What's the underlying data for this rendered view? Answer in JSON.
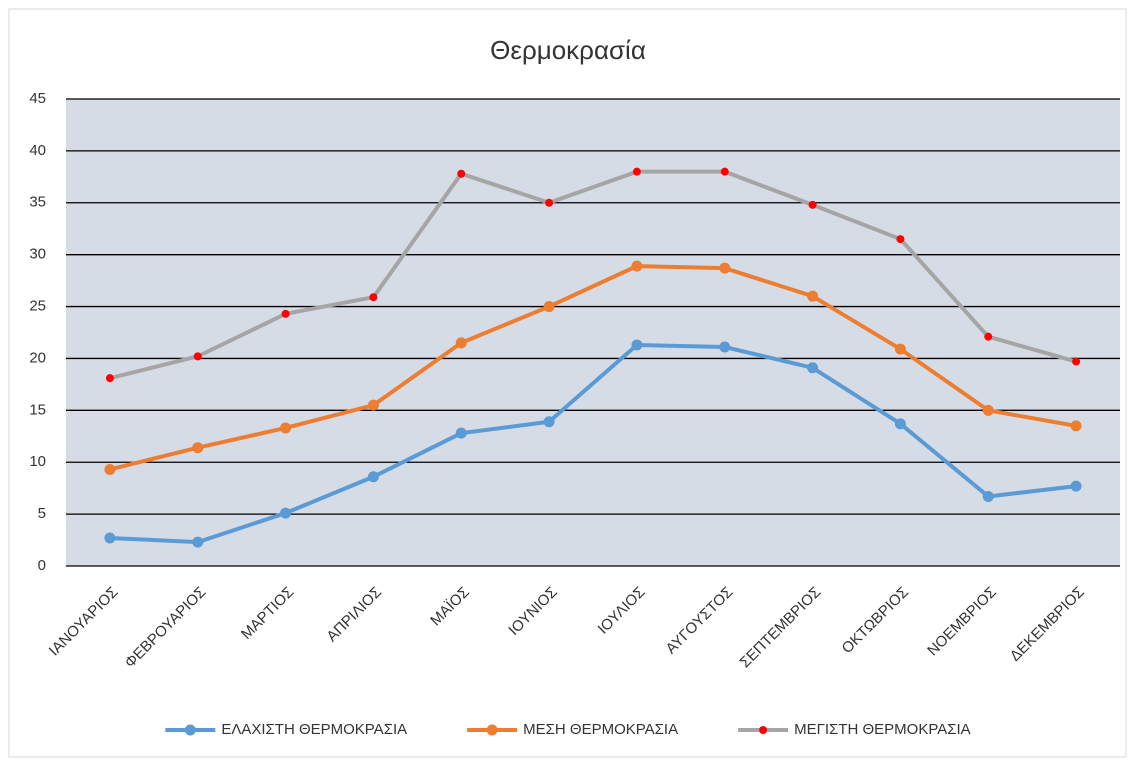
{
  "chart_data": {
    "type": "line",
    "title": "Θερμοκρασία",
    "categories": [
      "ΙΑΝΟΥΑΡΙΟΣ",
      "ΦΕΒΡΟΥΑΡΙΟΣ",
      "ΜΑΡΤΙΟΣ",
      "ΑΠΡΙΛΙΟΣ",
      "ΜΑΪΟΣ",
      "ΙΟΥΝΙΟΣ",
      "ΙΟΥΛΙΟΣ",
      "ΑΥΓΟΥΣΤΟΣ",
      "ΣΕΠΤΕΜΒΡΙΟΣ",
      "ΟΚΤΩΒΡΙΟΣ",
      "ΝΟΕΜΒΡΙΟΣ",
      "ΔΕΚΕΜΒΡΙΟΣ"
    ],
    "series": [
      {
        "name": "ΕΛΑΧΙΣΤΗ ΘΕΡΜΟΚΡΑΣΙΑ",
        "color": "#5b9bd5",
        "marker_color": "#5b9bd5",
        "values": [
          2.7,
          2.3,
          5.1,
          8.6,
          12.8,
          13.9,
          21.3,
          21.1,
          19.1,
          13.7,
          6.7,
          7.7
        ]
      },
      {
        "name": "ΜΕΣΗ ΘΕΡΜΟΚΡΑΣΙΑ",
        "color": "#ed7d31",
        "marker_color": "#ed7d31",
        "values": [
          9.3,
          11.4,
          13.3,
          15.5,
          21.5,
          25.0,
          28.9,
          28.7,
          26.0,
          20.9,
          15.0,
          13.5
        ]
      },
      {
        "name": "ΜΕΓΙΣΤΗ ΘΕΡΜΟΚΡΑΣΙΑ",
        "color": "#a5a5a5",
        "marker_color": "#ff0000",
        "values": [
          18.1,
          20.2,
          24.3,
          25.9,
          37.8,
          35.0,
          38.0,
          38.0,
          34.8,
          31.5,
          22.1,
          19.7
        ]
      }
    ],
    "ylim": [
      0,
      45
    ],
    "yticks": [
      0,
      5,
      10,
      15,
      20,
      25,
      30,
      35,
      40,
      45
    ],
    "grid": true,
    "legend": "bottom"
  }
}
